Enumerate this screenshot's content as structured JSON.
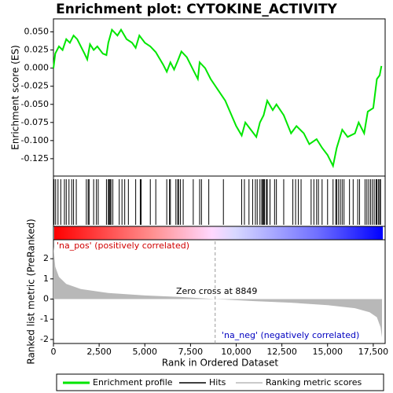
{
  "chart_data": [
    {
      "type": "line",
      "title": "Enrichment plot: CYTOKINE_ACTIVITY",
      "ylabel": "Enrichment score (ES)",
      "name": "Enrichment profile",
      "color": "#00e600",
      "xlim": [
        0,
        18150
      ],
      "ylim": [
        -0.149,
        0.068
      ],
      "yticks": [
        {
          "value": 0.05,
          "label": "0.050"
        },
        0.025,
        {
          "value": 0,
          "label": "0.000"
        },
        -0.025,
        {
          "value": -0.05,
          "label": "-0.050"
        },
        -0.075,
        {
          "value": -0.1,
          "label": "-0.100"
        },
        -0.125
      ],
      "x": [
        0,
        100,
        300,
        500,
        700,
        900,
        1100,
        1300,
        1700,
        1850,
        2000,
        2200,
        2400,
        2700,
        2900,
        3000,
        3200,
        3500,
        3700,
        4000,
        4300,
        4500,
        4700,
        5000,
        5300,
        5600,
        6000,
        6200,
        6400,
        6600,
        6800,
        7000,
        7300,
        7700,
        7900,
        8000,
        8300,
        8600,
        9000,
        9400,
        10000,
        10300,
        10500,
        10800,
        11100,
        11300,
        11500,
        11700,
        12000,
        12200,
        12600,
        13000,
        13300,
        13700,
        14000,
        14400,
        14700,
        15000,
        15300,
        15500,
        15800,
        16100,
        16500,
        16700,
        17000,
        17200,
        17500,
        17700,
        17850,
        17950
      ],
      "values": [
        0,
        0.02,
        0.03,
        0.025,
        0.04,
        0.035,
        0.045,
        0.04,
        0.02,
        0.012,
        0.033,
        0.025,
        0.03,
        0.02,
        0.018,
        0.035,
        0.053,
        0.045,
        0.053,
        0.04,
        0.035,
        0.028,
        0.045,
        0.035,
        0.03,
        0.022,
        0.005,
        -0.005,
        0.008,
        -0.002,
        0.01,
        0.023,
        0.015,
        -0.005,
        -0.015,
        0.008,
        0,
        -0.015,
        -0.03,
        -0.045,
        -0.08,
        -0.093,
        -0.075,
        -0.085,
        -0.095,
        -0.075,
        -0.065,
        -0.045,
        -0.058,
        -0.05,
        -0.065,
        -0.09,
        -0.08,
        -0.09,
        -0.105,
        -0.098,
        -0.11,
        -0.12,
        -0.135,
        -0.11,
        -0.085,
        -0.095,
        -0.09,
        -0.075,
        -0.09,
        -0.06,
        -0.055,
        -0.015,
        -0.01,
        0.003
      ]
    },
    {
      "type": "hits",
      "name": "Hits",
      "color": "#000000",
      "x": [
        30,
        120,
        250,
        400,
        600,
        700,
        850,
        1000,
        1100,
        1250,
        1800,
        1900,
        1950,
        2200,
        2350,
        2450,
        2900,
        3000,
        3050,
        3100,
        3150,
        3250,
        3600,
        3750,
        3900,
        4100,
        4500,
        4750,
        4800,
        5300,
        5600,
        6200,
        6350,
        6400,
        6700,
        6800,
        6850,
        6950,
        7100,
        7650,
        8000,
        8100,
        8500,
        9300,
        10300,
        10450,
        10700,
        10900,
        11050,
        11150,
        11300,
        11400,
        11450,
        11500,
        11550,
        11650,
        11700,
        11850,
        12100,
        12200,
        12600,
        13100,
        13250,
        13400,
        13550,
        14100,
        14250,
        14400,
        14500,
        14700,
        15000,
        15300,
        15450,
        15500,
        15600,
        15700,
        15800,
        15900,
        16200,
        16400,
        16650,
        16750,
        17050,
        17150,
        17250,
        17350,
        17450,
        17550,
        17650,
        17700,
        17780,
        17850,
        17900
      ]
    },
    {
      "type": "area",
      "name": "Ranking metric scores",
      "color": "#b8b8b8",
      "ylabel": "Ranked list metric (PreRanked)",
      "xlabel": "Rank in Ordered Dataset",
      "pos_label": "'na_pos' (positively correlated)",
      "neg_label": "'na_neg' (negatively correlated)",
      "zero_label": "Zero cross at 8849",
      "zero_cross": 8849,
      "ylim": [
        -2.2,
        2.94
      ],
      "yticks": [
        2,
        1,
        0,
        -1,
        -2
      ],
      "xticks": [
        0,
        {
          "value": 2500,
          "label": "2,500"
        },
        {
          "value": 5000,
          "label": "5,000"
        },
        {
          "value": 7500,
          "label": "7,500"
        },
        {
          "value": 10000,
          "label": "10,000"
        },
        {
          "value": 12500,
          "label": "12,500"
        },
        {
          "value": 15000,
          "label": "15,000"
        },
        {
          "value": 17500,
          "label": "17,500"
        }
      ],
      "x": [
        0,
        100,
        300,
        700,
        1500,
        3000,
        5000,
        7000,
        8849,
        11000,
        13000,
        15000,
        16500,
        17300,
        17700,
        17900,
        17980
      ],
      "values": [
        2.6,
        1.6,
        1.1,
        0.75,
        0.5,
        0.3,
        0.18,
        0.1,
        0,
        -0.1,
        -0.18,
        -0.3,
        -0.45,
        -0.65,
        -0.9,
        -1.4,
        -1.9
      ]
    }
  ]
}
